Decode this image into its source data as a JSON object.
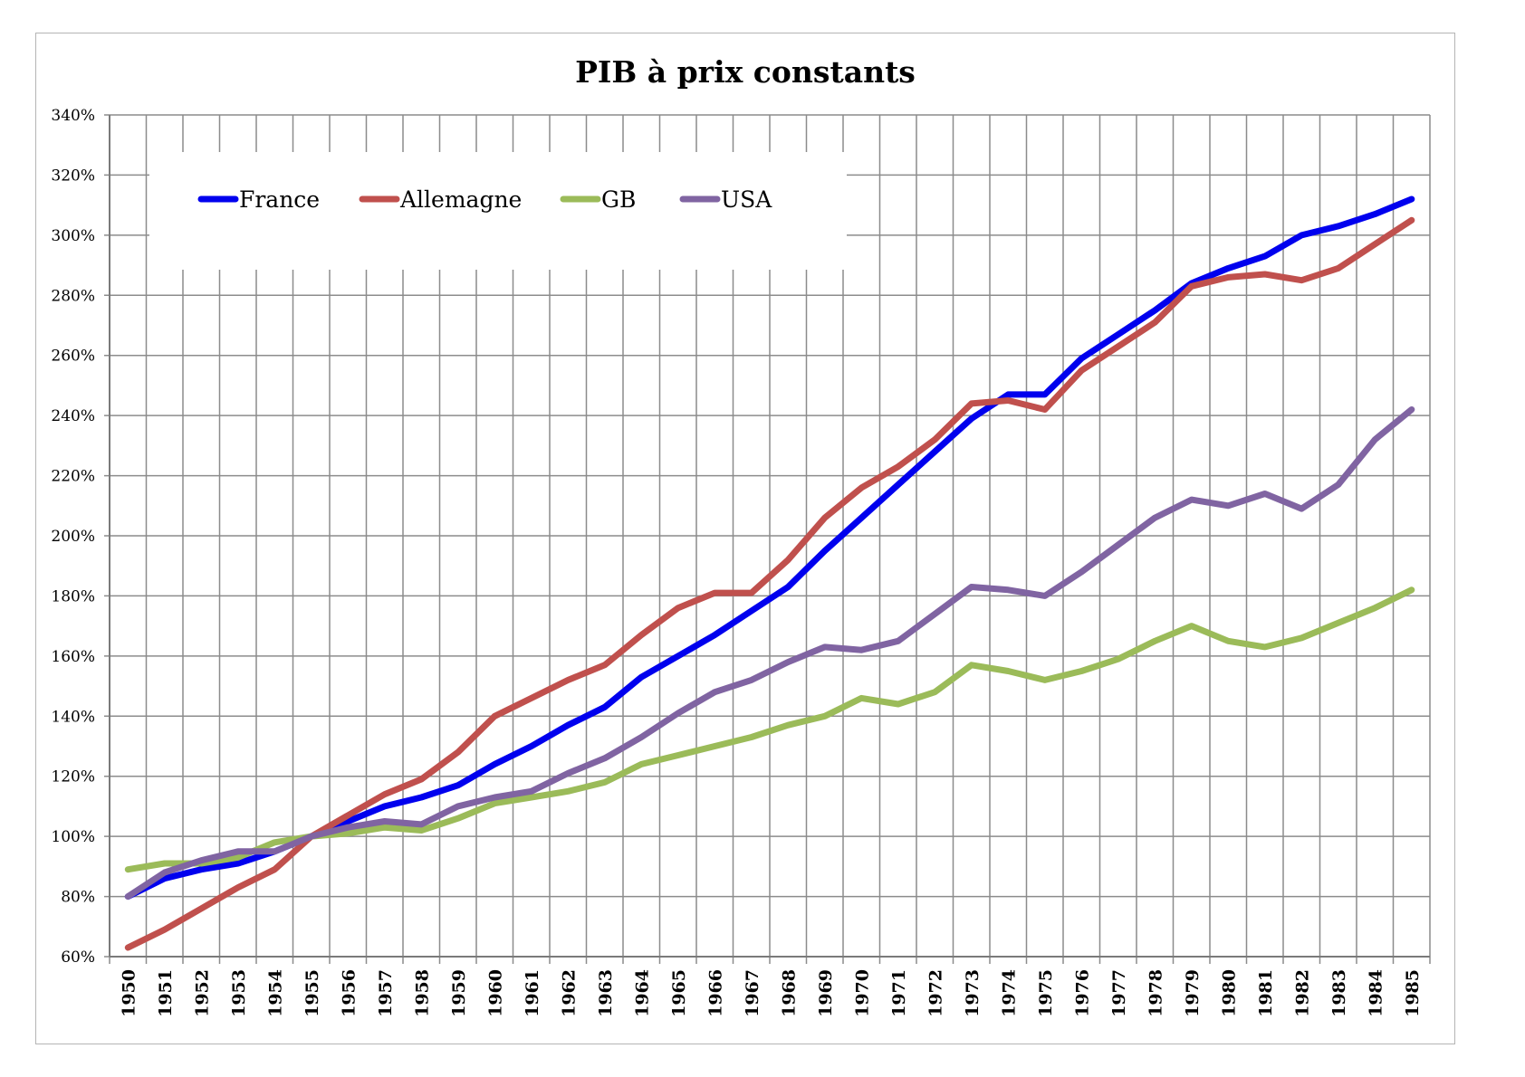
{
  "chart_data": {
    "type": "line",
    "title": "PIB à prix constants",
    "xlabel": "",
    "ylabel": "",
    "ylim": [
      0.6,
      3.4
    ],
    "y_tick_values": [
      0.6,
      0.8,
      1.0,
      1.2,
      1.4,
      1.6,
      1.8,
      2.0,
      2.2,
      2.4,
      2.6,
      2.8,
      3.0,
      3.2,
      3.4
    ],
    "y_tick_labels": [
      "60%",
      "80%",
      "100%",
      "120%",
      "140%",
      "160%",
      "180%",
      "200%",
      "220%",
      "240%",
      "260%",
      "280%",
      "300%",
      "320%",
      "340%"
    ],
    "grid": true,
    "legend_position": "top-left",
    "categories": [
      "1950",
      "1951",
      "1952",
      "1953",
      "1954",
      "1955",
      "1956",
      "1957",
      "1958",
      "1959",
      "1960",
      "1961",
      "1962",
      "1963",
      "1964",
      "1965",
      "1966",
      "1967",
      "1968",
      "1969",
      "1970",
      "1971",
      "1972",
      "1973",
      "1974",
      "1975",
      "1976",
      "1977",
      "1978",
      "1979",
      "1980",
      "1981",
      "1982",
      "1983",
      "1984",
      "1985"
    ],
    "series": [
      {
        "name": "France",
        "color": "#0000ee",
        "values": [
          0.8,
          0.86,
          0.89,
          0.91,
          0.95,
          1.0,
          1.05,
          1.1,
          1.13,
          1.17,
          1.24,
          1.3,
          1.37,
          1.43,
          1.53,
          1.6,
          1.67,
          1.75,
          1.83,
          1.95,
          2.06,
          2.17,
          2.28,
          2.39,
          2.47,
          2.47,
          2.59,
          2.67,
          2.75,
          2.84,
          2.89,
          2.93,
          3.0,
          3.03,
          3.07,
          3.12
        ]
      },
      {
        "name": "Allemagne",
        "color": "#c0504d",
        "values": [
          0.63,
          0.69,
          0.76,
          0.83,
          0.89,
          1.0,
          1.07,
          1.14,
          1.19,
          1.28,
          1.4,
          1.46,
          1.52,
          1.57,
          1.67,
          1.76,
          1.81,
          1.81,
          1.92,
          2.06,
          2.16,
          2.23,
          2.32,
          2.44,
          2.45,
          2.42,
          2.55,
          2.63,
          2.71,
          2.83,
          2.86,
          2.87,
          2.85,
          2.89,
          2.97,
          3.05
        ]
      },
      {
        "name": "GB",
        "color": "#9bbb59",
        "values": [
          0.89,
          0.91,
          0.91,
          0.93,
          0.98,
          1.0,
          1.01,
          1.03,
          1.02,
          1.06,
          1.11,
          1.13,
          1.15,
          1.18,
          1.24,
          1.27,
          1.3,
          1.33,
          1.37,
          1.4,
          1.46,
          1.44,
          1.48,
          1.57,
          1.55,
          1.52,
          1.55,
          1.59,
          1.65,
          1.7,
          1.65,
          1.63,
          1.66,
          1.71,
          1.76,
          1.82
        ]
      },
      {
        "name": "USA",
        "color": "#8064a2",
        "values": [
          0.8,
          0.88,
          0.92,
          0.95,
          0.95,
          1.0,
          1.03,
          1.05,
          1.04,
          1.1,
          1.13,
          1.15,
          1.21,
          1.26,
          1.33,
          1.41,
          1.48,
          1.52,
          1.58,
          1.63,
          1.62,
          1.65,
          1.74,
          1.83,
          1.82,
          1.8,
          1.88,
          1.97,
          2.06,
          2.12,
          2.1,
          2.14,
          2.09,
          2.17,
          2.32,
          2.42
        ]
      }
    ]
  }
}
